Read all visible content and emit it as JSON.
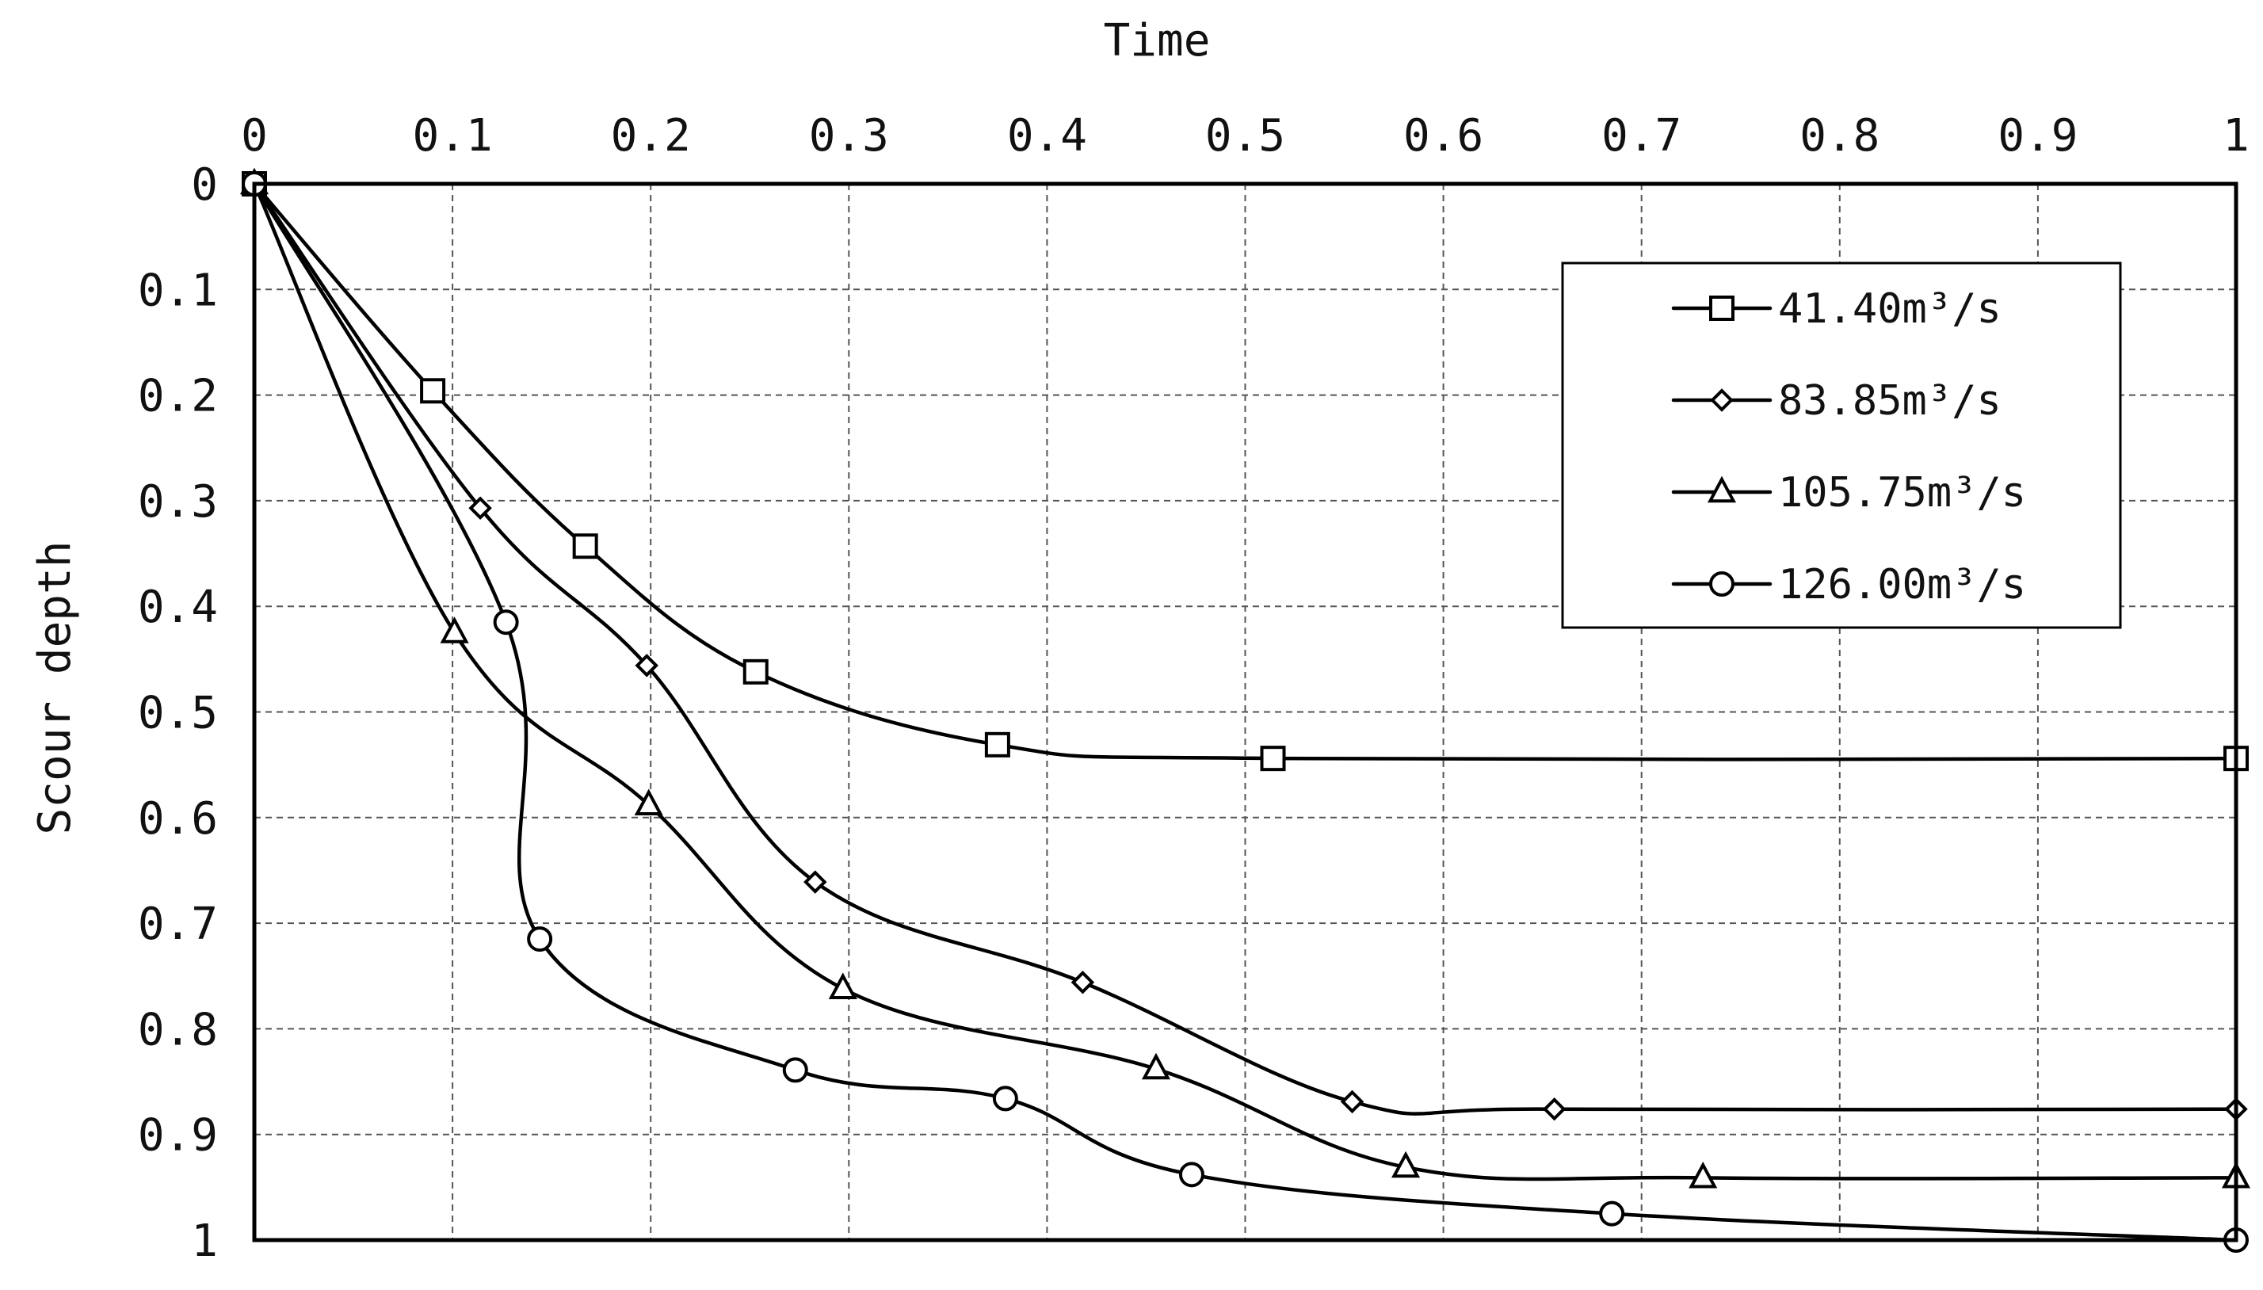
{
  "chart_data": {
    "type": "line",
    "title": "",
    "xlabel": "Time",
    "ylabel": "Scour depth",
    "xlim": [
      0,
      1
    ],
    "ylim": [
      0,
      1
    ],
    "y_inverted": true,
    "x_axis_position": "top",
    "grid": true,
    "x_ticks": [
      "0",
      "0.1",
      "0.2",
      "0.3",
      "0.4",
      "0.5",
      "0.6",
      "0.7",
      "0.8",
      "0.9",
      "1"
    ],
    "y_ticks": [
      "0",
      "0.1",
      "0.2",
      "0.3",
      "0.4",
      "0.5",
      "0.6",
      "0.7",
      "0.8",
      "0.9",
      "1"
    ],
    "legend": {
      "position": "top-right"
    },
    "series": [
      {
        "name": "41.40m³/s",
        "marker": "square",
        "color": "#000000",
        "x": [
          0,
          0.09,
          0.167,
          0.253,
          0.375,
          0.514,
          1.0
        ],
        "y": [
          0,
          0.196,
          0.343,
          0.462,
          0.531,
          0.544,
          0.544
        ]
      },
      {
        "name": "83.85m³/s",
        "marker": "diamond",
        "color": "#000000",
        "x": [
          0,
          0.114,
          0.198,
          0.283,
          0.418,
          0.554,
          0.656,
          1.0
        ],
        "y": [
          0,
          0.307,
          0.456,
          0.661,
          0.756,
          0.869,
          0.876,
          0.876
        ]
      },
      {
        "name": "105.75m³/s",
        "marker": "triangle",
        "color": "#000000",
        "x": [
          0,
          0.101,
          0.199,
          0.297,
          0.455,
          0.581,
          0.731,
          1.0
        ],
        "y": [
          0,
          0.425,
          0.588,
          0.762,
          0.838,
          0.931,
          0.941,
          0.941
        ]
      },
      {
        "name": "126.00m³/s",
        "marker": "circle",
        "color": "#000000",
        "x": [
          0,
          0.127,
          0.144,
          0.273,
          0.379,
          0.473,
          0.685,
          1.0
        ],
        "y": [
          0,
          0.415,
          0.715,
          0.839,
          0.866,
          0.938,
          0.975,
          1.0
        ]
      }
    ]
  }
}
